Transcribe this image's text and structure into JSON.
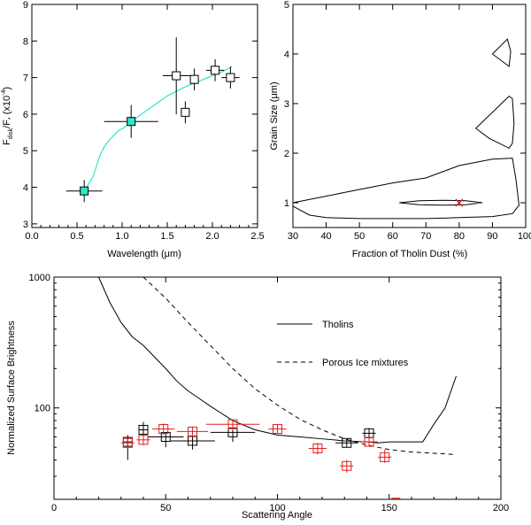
{
  "chart_data": [
    {
      "type": "scatter",
      "panel": "top-left",
      "xlabel": "Wavelength (μm)",
      "ylabel_main": "F",
      "ylabel_sub1": "disk",
      "ylabel_mid": "/F",
      "ylabel_sub2": "*",
      "ylabel_end": " (x10",
      "ylabel_exp": "-4",
      "ylabel_close": ")",
      "xlim": [
        0.0,
        2.5
      ],
      "ylim": [
        2.9,
        9.0
      ],
      "xticks": [
        0.0,
        0.5,
        1.0,
        1.5,
        2.0,
        2.5
      ],
      "xtick_labels": [
        "0.0",
        "0.5",
        "1.0",
        "1.5",
        "2.0",
        "2.5"
      ],
      "yticks": [
        3,
        4,
        5,
        6,
        7,
        8,
        9
      ],
      "ytick_labels": [
        "3",
        "4",
        "5",
        "6",
        "7",
        "8",
        "9"
      ],
      "points": [
        {
          "x": 0.58,
          "y": 3.9,
          "xerr": 0.2,
          "yerr": 0.3,
          "style": "filled-cyan"
        },
        {
          "x": 1.1,
          "y": 5.8,
          "xerr": 0.3,
          "yerr": 0.45,
          "style": "filled-cyan"
        },
        {
          "x": 1.6,
          "y": 7.05,
          "xerr": 0.15,
          "yerr": 1.05,
          "style": "open"
        },
        {
          "x": 1.8,
          "y": 6.95,
          "xerr": 0.05,
          "yerr": 0.3,
          "style": "open"
        },
        {
          "x": 1.7,
          "y": 6.05,
          "xerr": 0.05,
          "yerr": 0.3,
          "style": "open"
        },
        {
          "x": 2.03,
          "y": 7.2,
          "xerr": 0.1,
          "yerr": 0.3,
          "style": "open"
        },
        {
          "x": 2.2,
          "y": 7.0,
          "xerr": 0.1,
          "yerr": 0.3,
          "style": "open"
        }
      ],
      "model_curve": {
        "color": "#2ee6c8",
        "x": [
          0.58,
          0.68,
          0.75,
          0.8,
          0.86,
          0.92,
          0.96,
          1.0,
          1.05,
          1.1,
          1.3,
          1.5,
          1.7,
          1.9,
          2.1,
          2.22
        ],
        "y": [
          3.9,
          4.3,
          4.85,
          5.1,
          5.3,
          5.45,
          5.55,
          5.6,
          5.68,
          5.8,
          6.15,
          6.5,
          6.75,
          6.95,
          7.15,
          7.3
        ]
      }
    },
    {
      "type": "contour",
      "panel": "top-right",
      "xlabel": "Fraction of Tholin Dust (%)",
      "ylabel": "Grain Size (μm)",
      "xlim": [
        30,
        100
      ],
      "ylim": [
        0.5,
        5.0
      ],
      "xticks": [
        30,
        40,
        50,
        60,
        70,
        80,
        90,
        100
      ],
      "xtick_labels": [
        "30",
        "40",
        "50",
        "60",
        "70",
        "80",
        "90",
        "100"
      ],
      "yticks": [
        1,
        2,
        3,
        4,
        5
      ],
      "ytick_labels": [
        "1",
        "2",
        "3",
        "4",
        "5"
      ],
      "contours": [
        {
          "x": [
            62,
            68,
            75,
            82,
            87,
            82,
            75,
            68,
            62
          ],
          "y": [
            1.0,
            1.04,
            1.05,
            1.04,
            1.0,
            0.96,
            0.95,
            0.96,
            1.0
          ]
        },
        {
          "x": [
            30,
            45,
            60,
            70,
            80,
            90,
            96,
            97,
            98,
            96,
            90,
            80,
            70,
            60,
            50,
            40,
            35,
            30
          ],
          "y": [
            1.0,
            1.2,
            1.4,
            1.5,
            1.75,
            1.88,
            1.9,
            1.5,
            0.95,
            0.78,
            0.72,
            0.7,
            0.68,
            0.68,
            0.68,
            0.7,
            0.75,
            0.93
          ]
        },
        {
          "x": [
            85,
            95,
            96,
            96.5,
            96,
            95,
            89,
            85
          ],
          "y": [
            2.5,
            3.15,
            3.1,
            2.6,
            2.2,
            2.1,
            2.3,
            2.5
          ]
        },
        {
          "x": [
            90,
            94.5,
            95.5,
            95,
            90
          ],
          "y": [
            4.0,
            4.3,
            4.05,
            3.75,
            4.0
          ]
        }
      ],
      "best_fit": {
        "x": 80,
        "y": 1.0,
        "color": "#e02020"
      }
    },
    {
      "type": "scatter",
      "panel": "bottom",
      "xlabel": "Scattering Angle",
      "ylabel": "Normalized Surface Brightness",
      "xlim": [
        0,
        200
      ],
      "ylim": [
        20,
        1000
      ],
      "yscale": "log",
      "xticks": [
        0,
        50,
        100,
        150,
        200
      ],
      "xtick_labels": [
        "0",
        "50",
        "100",
        "150",
        "200"
      ],
      "yticks": [
        100,
        1000
      ],
      "ytick_labels": [
        "100",
        "1000"
      ],
      "legend": [
        {
          "label": "Tholins",
          "style": "solid"
        },
        {
          "label": "Porous Ice mixtures",
          "style": "dashed"
        }
      ],
      "series": [
        {
          "name": "Tholins",
          "style": "solid",
          "x": [
            20,
            25,
            30,
            35,
            40,
            45,
            50,
            55,
            60,
            65,
            70,
            80,
            90,
            100,
            110,
            120,
            130,
            140,
            145,
            150,
            160,
            165,
            170,
            175,
            180
          ],
          "y": [
            1000,
            640,
            450,
            350,
            300,
            245,
            200,
            160,
            135,
            118,
            103,
            80,
            68,
            62,
            60,
            58,
            56,
            55,
            54,
            55,
            55,
            55,
            75,
            100,
            175
          ]
        },
        {
          "name": "Porous Ice mixtures",
          "style": "dashed",
          "x": [
            40,
            50,
            60,
            70,
            80,
            90,
            100,
            110,
            120,
            130,
            140,
            150,
            160,
            170,
            180
          ],
          "y": [
            1000,
            690,
            450,
            300,
            200,
            140,
            105,
            82,
            68,
            58,
            52,
            48,
            46,
            45,
            44
          ]
        },
        {
          "name": "black-points",
          "color": "#000000",
          "points": [
            {
              "x": 33,
              "y": 55,
              "xerr": 2,
              "ylo": 40,
              "yhi": 62
            },
            {
              "x": 40,
              "y": 68,
              "xerr": 2,
              "ylo": 60,
              "yhi": 78
            },
            {
              "x": 50,
              "y": 60,
              "xerr": 8,
              "ylo": 50,
              "yhi": 65
            },
            {
              "x": 62,
              "y": 56,
              "xerr": 10,
              "ylo": 48,
              "yhi": 62
            },
            {
              "x": 80,
              "y": 65,
              "xerr": 10,
              "ylo": 55,
              "yhi": 72
            },
            {
              "x": 131,
              "y": 54,
              "xerr": 5,
              "ylo": 50,
              "yhi": 58
            },
            {
              "x": 141,
              "y": 64,
              "xerr": 3,
              "ylo": 57,
              "yhi": 70
            }
          ]
        },
        {
          "name": "red-points",
          "color": "#e02020",
          "points": [
            {
              "x": 33,
              "y": 54,
              "xerr": 3,
              "ylo": 49,
              "yhi": 59
            },
            {
              "x": 40,
              "y": 57,
              "xerr": 3,
              "ylo": 52,
              "yhi": 62
            },
            {
              "x": 49,
              "y": 69,
              "xerr": 5,
              "ylo": 62,
              "yhi": 76
            },
            {
              "x": 62,
              "y": 66,
              "xerr": 7,
              "ylo": 60,
              "yhi": 72
            },
            {
              "x": 80,
              "y": 75,
              "xerr": 12,
              "ylo": 67,
              "yhi": 82
            },
            {
              "x": 100,
              "y": 69,
              "xerr": 4,
              "ylo": 64,
              "yhi": 74
            },
            {
              "x": 118,
              "y": 49,
              "xerr": 4,
              "ylo": 44,
              "yhi": 54
            },
            {
              "x": 131,
              "y": 36,
              "xerr": 3,
              "ylo": 32,
              "yhi": 40
            },
            {
              "x": 141,
              "y": 55,
              "xerr": 4,
              "ylo": 51,
              "yhi": 59
            },
            {
              "x": 148,
              "y": 42,
              "xerr": 3,
              "ylo": 38,
              "yhi": 48
            }
          ],
          "offscale": {
            "x": 153,
            "y": 20
          }
        }
      ]
    }
  ]
}
